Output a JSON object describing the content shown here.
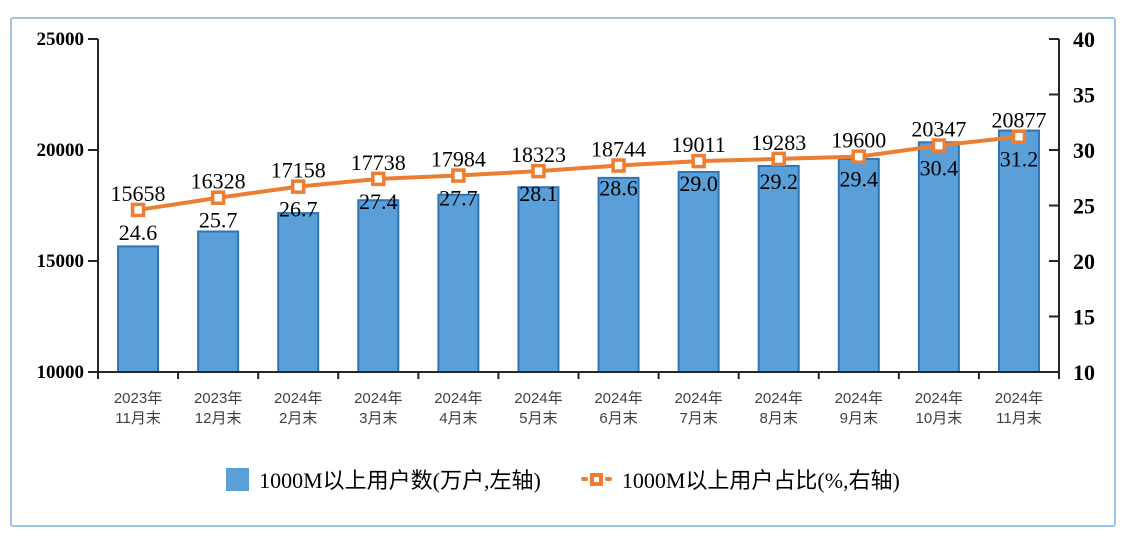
{
  "chart_data": {
    "type": "combo-bar-line",
    "title": "",
    "grid": "off",
    "legend_position": "bottom",
    "categories": [
      [
        "2023年",
        "11月末"
      ],
      [
        "2023年",
        "12月末"
      ],
      [
        "2024年",
        "2月末"
      ],
      [
        "2024年",
        "3月末"
      ],
      [
        "2024年",
        "4月末"
      ],
      [
        "2024年",
        "5月末"
      ],
      [
        "2024年",
        "6月末"
      ],
      [
        "2024年",
        "7月末"
      ],
      [
        "2024年",
        "8月末"
      ],
      [
        "2024年",
        "9月末"
      ],
      [
        "2024年",
        "10月末"
      ],
      [
        "2024年",
        "11月末"
      ]
    ],
    "series": [
      {
        "name": "1000M以上用户数(万户,左轴)",
        "type": "bar",
        "axis": "left",
        "values": [
          15658,
          16328,
          17158,
          17738,
          17984,
          18323,
          18744,
          19011,
          19283,
          19600,
          20347,
          20877
        ],
        "labels": [
          "15658",
          "16328",
          "17158",
          "17738",
          "17984",
          "18323",
          "18744",
          "19011",
          "19283",
          "19600",
          "20347",
          "20877"
        ]
      },
      {
        "name": "1000M以上用户占比(%,右轴)",
        "type": "line",
        "axis": "right",
        "values": [
          24.6,
          25.7,
          26.7,
          27.4,
          27.7,
          28.1,
          28.6,
          29.0,
          29.2,
          29.4,
          30.4,
          31.2
        ],
        "labels": [
          "24.6",
          "25.7",
          "26.7",
          "27.4",
          "27.7",
          "28.1",
          "28.6",
          "29.0",
          "29.2",
          "29.4",
          "30.4",
          "31.2"
        ]
      }
    ],
    "left_axis": {
      "min": 10000,
      "max": 25000,
      "tick_values": [
        25000,
        20000,
        15000,
        10000
      ],
      "ticks": [
        "25000",
        "20000",
        "15000",
        "10000"
      ]
    },
    "right_axis": {
      "min": 10,
      "max": 40,
      "tick_values": [
        40,
        35,
        30,
        25,
        20,
        15,
        10
      ],
      "ticks": [
        "40",
        "35",
        "30",
        "25",
        "20",
        "15",
        "10"
      ]
    },
    "colors": {
      "bar_fill": "#5B9FD8",
      "bar_border": "#2E75B6",
      "line": "#ED7D31",
      "marker_fill": "#FFFFFF",
      "axis": "#262626",
      "frame_border": "#9DC3E6",
      "xlabel_color": "#3F3F3F",
      "data_label_color": "#000000"
    }
  }
}
